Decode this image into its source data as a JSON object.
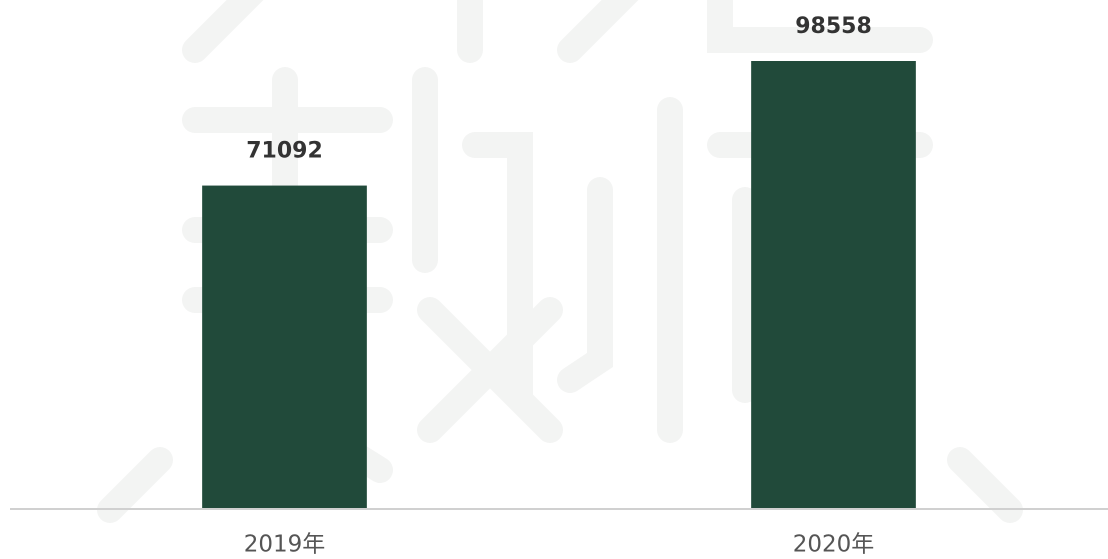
{
  "chart_data": {
    "type": "bar",
    "categories": [
      "2019年",
      "2020年"
    ],
    "values": [
      71092,
      98558
    ],
    "color": "#214a3a"
  }
}
